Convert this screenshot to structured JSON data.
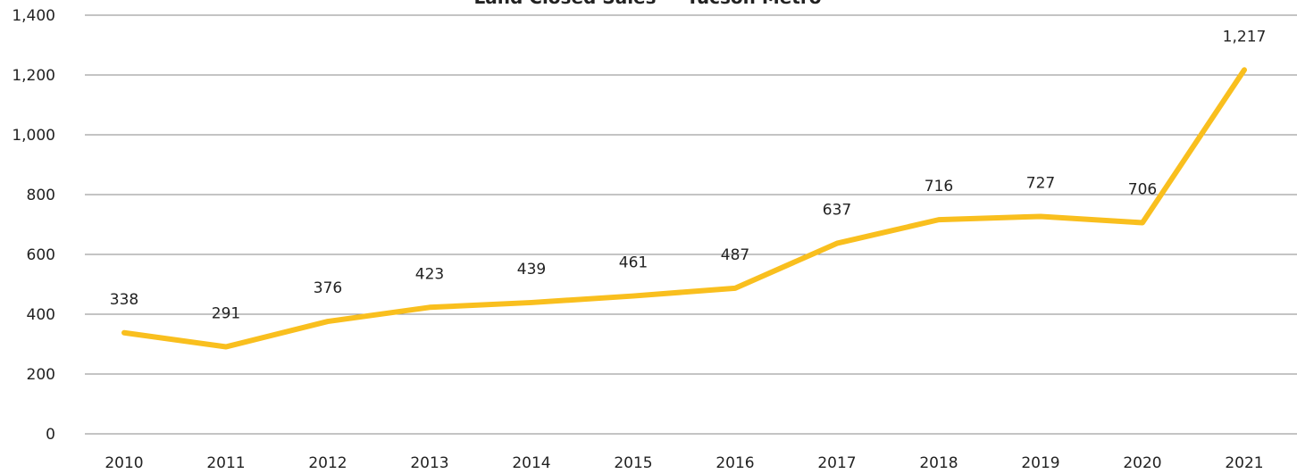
{
  "chart_data": {
    "type": "line",
    "title": "Land Closed Sales — Tucson Metro",
    "categories": [
      "2010",
      "2011",
      "2012",
      "2013",
      "2014",
      "2015",
      "2016",
      "2017",
      "2018",
      "2019",
      "2020",
      "2021"
    ],
    "series": [
      {
        "name": "Land Closed Sales",
        "color": "#f9bf1e",
        "values": [
          338,
          291,
          376,
          423,
          439,
          461,
          487,
          637,
          716,
          727,
          706,
          1217
        ],
        "value_labels": [
          "338",
          "291",
          "376",
          "423",
          "439",
          "461",
          "487",
          "637",
          "716",
          "727",
          "706",
          "1,217"
        ]
      }
    ],
    "ylim": [
      0,
      1400
    ],
    "yticks": [
      0,
      200,
      400,
      600,
      800,
      {
        "value": 1000,
        "label": "1,000"
      },
      {
        "value": 1200,
        "label": "1,200"
      },
      {
        "value": 1400,
        "label": "1,400"
      }
    ],
    "grid": true
  }
}
